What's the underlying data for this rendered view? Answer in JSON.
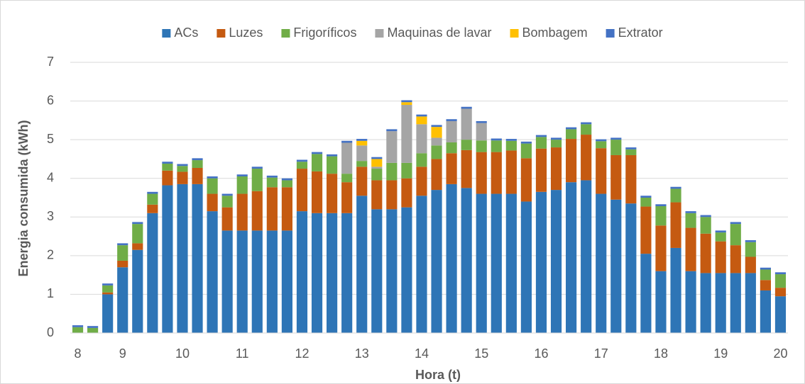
{
  "chart_data": {
    "type": "stacked_bar",
    "xlabel": "Hora (t)",
    "ylabel": "Energia consumida (kWh)",
    "categories": [
      "8",
      null,
      null,
      "9",
      null,
      null,
      null,
      "10",
      null,
      null,
      null,
      "11",
      null,
      null,
      null,
      "12",
      null,
      null,
      null,
      "13",
      null,
      null,
      null,
      "14",
      null,
      null,
      null,
      "15",
      null,
      null,
      null,
      "16",
      null,
      null,
      null,
      "17",
      null,
      null,
      null,
      "18",
      null,
      null,
      null,
      "19",
      null,
      null,
      null,
      "20"
    ],
    "series": [
      {
        "name": "ACs",
        "color": "#2e75b6",
        "values": [
          0,
          0,
          1.0,
          1.7,
          2.15,
          3.1,
          3.82,
          3.85,
          3.85,
          3.15,
          2.65,
          2.65,
          2.65,
          2.65,
          2.65,
          3.15,
          3.1,
          3.1,
          3.1,
          3.55,
          3.2,
          3.2,
          3.25,
          3.55,
          3.7,
          3.85,
          3.75,
          3.6,
          3.6,
          3.6,
          3.4,
          3.65,
          3.7,
          3.9,
          3.95,
          3.6,
          3.45,
          3.35,
          2.05,
          1.6,
          2.2,
          1.6,
          1.55,
          1.55,
          1.55,
          1.55,
          1.1,
          0.95
        ]
      },
      {
        "name": "Luzes",
        "color": "#c55a11",
        "values": [
          0,
          0,
          0.05,
          0.17,
          0.17,
          0.22,
          0.38,
          0.32,
          0.42,
          0.45,
          0.6,
          0.95,
          1.02,
          1.12,
          1.12,
          1.1,
          1.08,
          1.02,
          0.8,
          0.75,
          0.75,
          0.75,
          0.75,
          0.75,
          0.8,
          0.8,
          0.98,
          1.08,
          1.08,
          1.12,
          1.12,
          1.12,
          1.1,
          1.12,
          1.18,
          1.18,
          1.15,
          1.25,
          1.22,
          1.18,
          1.18,
          1.12,
          1.02,
          0.82,
          0.72,
          0.42,
          0.27,
          0.22
        ]
      },
      {
        "name": "Frigoríficos",
        "color": "#70ad47",
        "values": [
          0.15,
          0.13,
          0.18,
          0.4,
          0.5,
          0.28,
          0.18,
          0.15,
          0.2,
          0.4,
          0.3,
          0.45,
          0.58,
          0.25,
          0.18,
          0.18,
          0.45,
          0.45,
          0.22,
          0.15,
          0.3,
          0.45,
          0.4,
          0.35,
          0.35,
          0.28,
          0.27,
          0.3,
          0.3,
          0.25,
          0.38,
          0.3,
          0.2,
          0.25,
          0.27,
          0.18,
          0.4,
          0.15,
          0.23,
          0.5,
          0.35,
          0.38,
          0.43,
          0.23,
          0.55,
          0.38,
          0.27,
          0.35
        ]
      },
      {
        "name": "Maquinas de lavar",
        "color": "#a5a5a5",
        "values": [
          0,
          0,
          0,
          0,
          0,
          0,
          0,
          0,
          0,
          0,
          0,
          0,
          0,
          0,
          0,
          0,
          0,
          0,
          0.8,
          0.4,
          0.05,
          0.82,
          1.5,
          0.75,
          0.2,
          0.55,
          0.8,
          0.45,
          0,
          0,
          0,
          0,
          0,
          0,
          0,
          0,
          0,
          0,
          0,
          0,
          0,
          0,
          0,
          0,
          0,
          0,
          0,
          0
        ]
      },
      {
        "name": "Bombagem",
        "color": "#ffc000",
        "values": [
          0,
          0,
          0,
          0,
          0,
          0,
          0,
          0,
          0,
          0,
          0,
          0,
          0,
          0,
          0,
          0,
          0,
          0,
          0,
          0.12,
          0.2,
          0,
          0.07,
          0.2,
          0.28,
          0,
          0,
          0,
          0,
          0,
          0,
          0,
          0,
          0,
          0,
          0,
          0,
          0,
          0,
          0,
          0,
          0,
          0,
          0,
          0,
          0,
          0,
          0
        ]
      },
      {
        "name": "Extrator",
        "color": "#4472c4",
        "values": [
          0.05,
          0.05,
          0.05,
          0.05,
          0.05,
          0.05,
          0.05,
          0.05,
          0.05,
          0.05,
          0.05,
          0.05,
          0.05,
          0.05,
          0.05,
          0.05,
          0.05,
          0.05,
          0.05,
          0.05,
          0.05,
          0.05,
          0.05,
          0.05,
          0.05,
          0.05,
          0.05,
          0.05,
          0.05,
          0.05,
          0.05,
          0.05,
          0.05,
          0.05,
          0.05,
          0.05,
          0.05,
          0.05,
          0.05,
          0.05,
          0.05,
          0.05,
          0.05,
          0.05,
          0.05,
          0.05,
          0.05,
          0.05
        ]
      }
    ],
    "ylim": [
      0,
      7
    ],
    "yticks": [
      0,
      1,
      2,
      3,
      4,
      5,
      6,
      7
    ],
    "grid": true,
    "legend": "top"
  }
}
